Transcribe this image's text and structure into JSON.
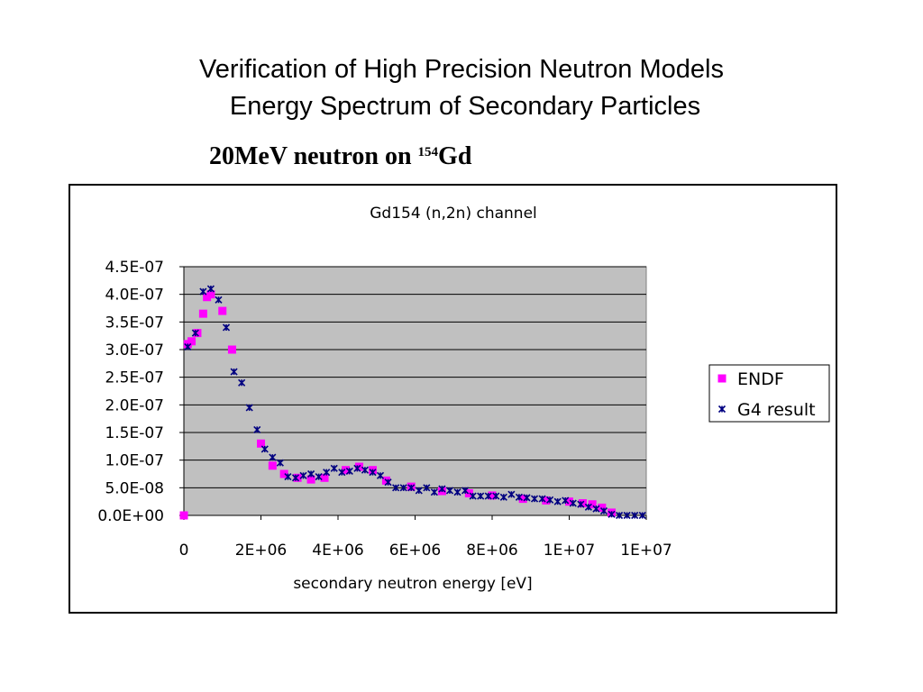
{
  "slide": {
    "title_lines": [
      "Verification of High Precision Neutron Models",
      "Energy Spectrum of Secondary Particles"
    ],
    "subtitle": {
      "before": "20MeV neutron on ",
      "superscript": "154",
      "after": "Gd"
    }
  },
  "chart_data": {
    "type": "scatter",
    "title": "Gd154 (n,2n) channel",
    "x_label": "secondary neutron energy [eV]",
    "xlim": [
      0,
      12000000
    ],
    "ylim": [
      0,
      4.5e-07
    ],
    "xticks": [
      0,
      {
        "value": 2000000,
        "label": "2E+06"
      },
      {
        "value": 4000000,
        "label": "4E+06"
      },
      {
        "value": 6000000,
        "label": "6E+06"
      },
      {
        "value": 8000000,
        "label": "8E+06"
      },
      {
        "value": 10000000,
        "label": "1E+07"
      },
      {
        "value": 12000000,
        "label": "1E+07"
      }
    ],
    "yticks": [
      {
        "value": 0,
        "label": "0.0E+00"
      },
      {
        "value": 5e-08,
        "label": "5.0E-08"
      },
      {
        "value": 1e-07,
        "label": "1.0E-07"
      },
      {
        "value": 1.5e-07,
        "label": "1.5E-07"
      },
      {
        "value": 2e-07,
        "label": "2.0E-07"
      },
      {
        "value": 2.5e-07,
        "label": "2.5E-07"
      },
      {
        "value": 3e-07,
        "label": "3.0E-07"
      },
      {
        "value": 3.5e-07,
        "label": "3.5E-07"
      },
      {
        "value": 4e-07,
        "label": "4.0E-07"
      },
      {
        "value": 4.5e-07,
        "label": "4.5E-07"
      }
    ],
    "grid": true,
    "plot_background": "#c0c0c0",
    "legend": "right",
    "series": [
      {
        "name": "ENDF",
        "color": "#ff00ff",
        "marker": "square",
        "x": [
          0,
          100000,
          200000,
          350000,
          500000,
          600000,
          700000,
          1000000,
          1250000,
          2000000,
          2300000,
          2600000,
          2950000,
          3300000,
          3650000,
          4200000,
          4550000,
          4900000,
          5250000,
          5900000,
          6700000,
          7400000,
          8000000,
          8800000,
          9400000,
          10000000,
          10350000,
          10600000,
          10850000,
          11100000
        ],
        "values": [
          0,
          3.1e-07,
          3.15e-07,
          3.3e-07,
          3.65e-07,
          3.95e-07,
          4e-07,
          3.7e-07,
          3e-07,
          1.3e-07,
          9e-08,
          7.5e-08,
          6.8e-08,
          6.5e-08,
          6.8e-08,
          8.2e-08,
          8.8e-08,
          8.2e-08,
          6.3e-08,
          5.2e-08,
          4.4e-08,
          4e-08,
          3.6e-08,
          3e-08,
          2.7e-08,
          2.5e-08,
          2.2e-08,
          2e-08,
          1.4e-08,
          5e-09
        ]
      },
      {
        "name": "G4 result",
        "color": "#000080",
        "marker": "x",
        "x": [
          100000,
          300000,
          500000,
          700000,
          900000,
          1100000,
          1300000,
          1500000,
          1700000,
          1900000,
          2100000,
          2300000,
          2500000,
          2700000,
          2900000,
          3100000,
          3300000,
          3500000,
          3700000,
          3900000,
          4100000,
          4300000,
          4500000,
          4700000,
          4900000,
          5100000,
          5300000,
          5500000,
          5700000,
          5900000,
          6100000,
          6300000,
          6500000,
          6700000,
          6900000,
          7100000,
          7300000,
          7500000,
          7700000,
          7900000,
          8100000,
          8300000,
          8500000,
          8700000,
          8900000,
          9100000,
          9300000,
          9500000,
          9700000,
          9900000,
          10100000,
          10300000,
          10500000,
          10700000,
          10900000,
          11100000,
          11300000,
          11500000,
          11700000,
          11900000
        ],
        "values": [
          3.05e-07,
          3.3e-07,
          4.05e-07,
          4.1e-07,
          3.9e-07,
          3.4e-07,
          2.6e-07,
          2.4e-07,
          1.95e-07,
          1.55e-07,
          1.2e-07,
          1.05e-07,
          9.5e-08,
          7e-08,
          6.8e-08,
          7.2e-08,
          7.5e-08,
          7e-08,
          7.8e-08,
          8.5e-08,
          7.8e-08,
          8e-08,
          8.5e-08,
          8.2e-08,
          7.8e-08,
          7.2e-08,
          6e-08,
          5e-08,
          5e-08,
          5e-08,
          4.5e-08,
          5e-08,
          4.2e-08,
          4.8e-08,
          4.5e-08,
          4.2e-08,
          4.5e-08,
          3.5e-08,
          3.5e-08,
          3.5e-08,
          3.5e-08,
          3.3e-08,
          3.8e-08,
          3.3e-08,
          3.2e-08,
          3e-08,
          3e-08,
          2.8e-08,
          2.5e-08,
          2.7e-08,
          2.2e-08,
          2e-08,
          1.5e-08,
          1.2e-08,
          8e-09,
          2e-09,
          0,
          0,
          0,
          0
        ]
      }
    ]
  }
}
